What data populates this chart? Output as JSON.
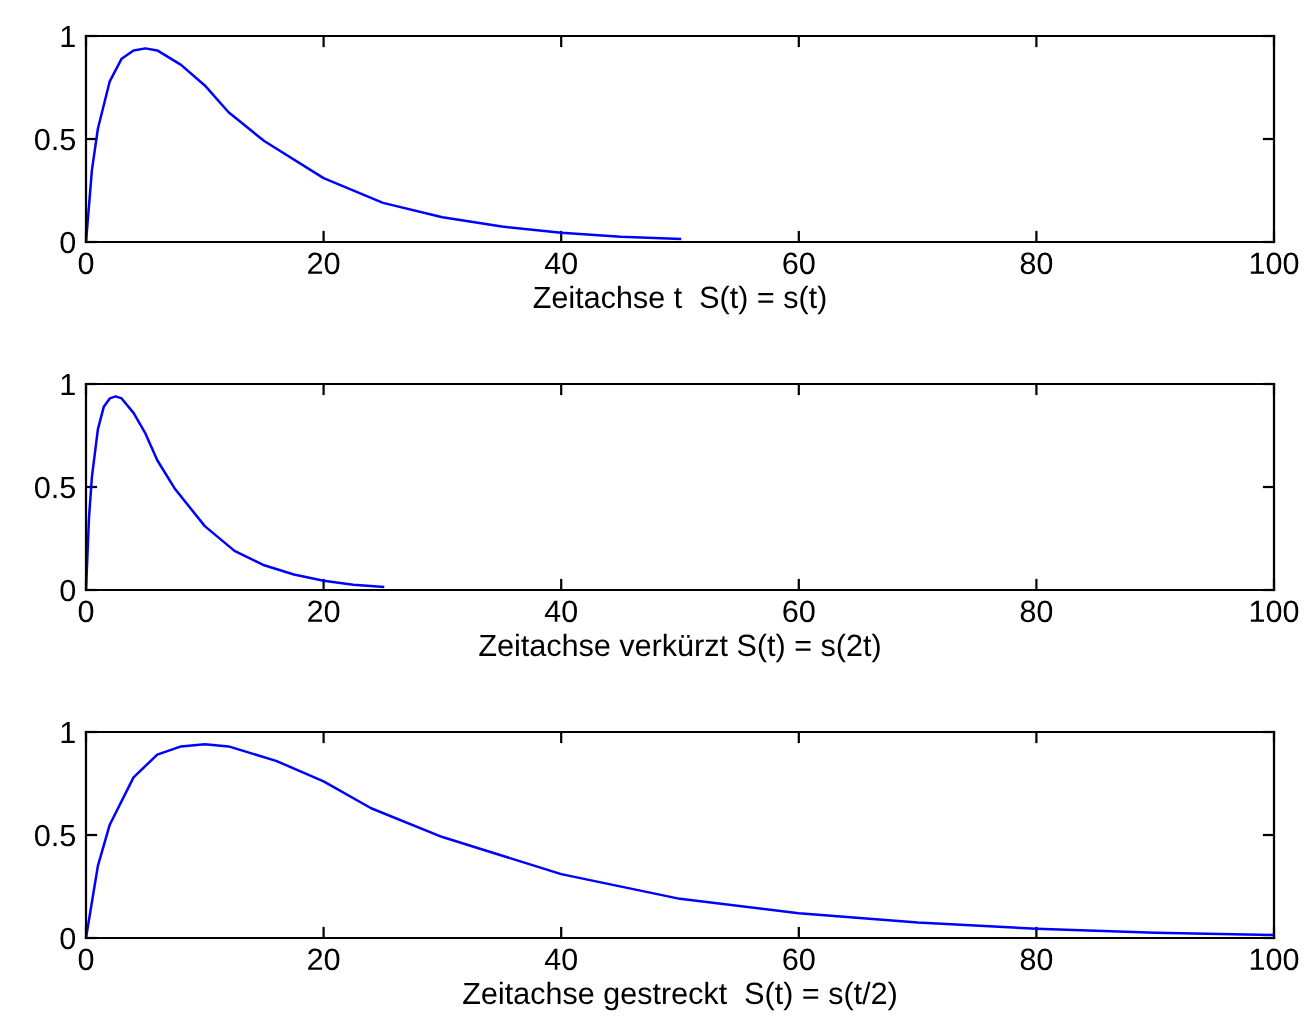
{
  "chart_data": [
    {
      "type": "line",
      "xlabel": "Zeitachse t  S(t) = s(t)",
      "x": [
        0,
        0.5,
        1,
        2,
        3,
        4,
        5,
        6,
        8,
        10,
        12,
        15,
        20,
        25,
        30,
        35,
        40,
        45,
        50
      ],
      "series": [
        {
          "color": "#0000ff",
          "values": [
            0,
            0.35,
            0.55,
            0.78,
            0.89,
            0.93,
            0.94,
            0.93,
            0.86,
            0.76,
            0.63,
            0.49,
            0.31,
            0.19,
            0.12,
            0.075,
            0.045,
            0.025,
            0.015
          ]
        }
      ],
      "xlim": [
        0,
        100
      ],
      "xticks": [
        0,
        20,
        40,
        60,
        80,
        100
      ],
      "ylim": [
        0,
        1
      ],
      "yticks": [
        0,
        0.5,
        1
      ]
    },
    {
      "type": "line",
      "xlabel": "Zeitachse verkürzt S(t) = s(2t)",
      "x": [
        0,
        0.25,
        0.5,
        1,
        1.5,
        2,
        2.5,
        3,
        4,
        5,
        6,
        7.5,
        10,
        12.5,
        15,
        17.5,
        20,
        22.5,
        25
      ],
      "series": [
        {
          "color": "#0000ff",
          "values": [
            0,
            0.35,
            0.55,
            0.78,
            0.89,
            0.93,
            0.94,
            0.93,
            0.86,
            0.76,
            0.63,
            0.49,
            0.31,
            0.19,
            0.12,
            0.075,
            0.045,
            0.025,
            0.015
          ]
        }
      ],
      "xlim": [
        0,
        100
      ],
      "xticks": [
        0,
        20,
        40,
        60,
        80,
        100
      ],
      "ylim": [
        0,
        1
      ],
      "yticks": [
        0,
        0.5,
        1
      ]
    },
    {
      "type": "line",
      "xlabel": "Zeitachse gestreckt  S(t) = s(t/2)",
      "x": [
        0,
        1,
        2,
        4,
        6,
        8,
        10,
        12,
        16,
        20,
        24,
        30,
        40,
        50,
        60,
        70,
        80,
        90,
        100
      ],
      "series": [
        {
          "color": "#0000ff",
          "values": [
            0,
            0.35,
            0.55,
            0.78,
            0.89,
            0.93,
            0.94,
            0.93,
            0.86,
            0.76,
            0.63,
            0.49,
            0.31,
            0.19,
            0.12,
            0.075,
            0.045,
            0.025,
            0.015
          ]
        }
      ],
      "xlim": [
        0,
        100
      ],
      "xticks": [
        0,
        20,
        40,
        60,
        80,
        100
      ],
      "ylim": [
        0,
        1
      ],
      "yticks": [
        0,
        0.5,
        1
      ]
    }
  ]
}
